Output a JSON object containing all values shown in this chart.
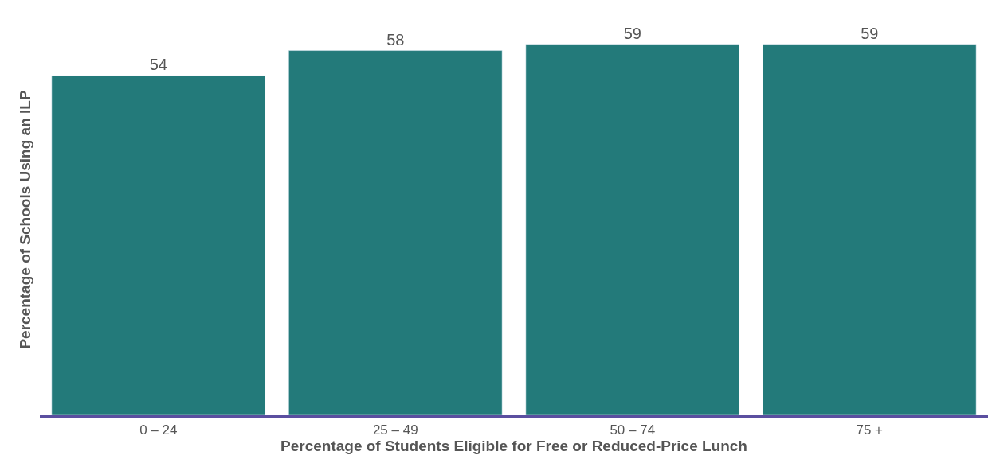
{
  "chart_data": {
    "type": "bar",
    "xlabel": "Percentage of Students Eligible for Free or Reduced-Price Lunch",
    "ylabel": "Percentage of Schools Using an ILP",
    "categories": [
      "0 – 24",
      "25 – 49",
      "50 – 74",
      "75 +"
    ],
    "values": [
      54,
      58,
      59,
      59
    ],
    "color": "#237a7a",
    "data_labels": true
  }
}
